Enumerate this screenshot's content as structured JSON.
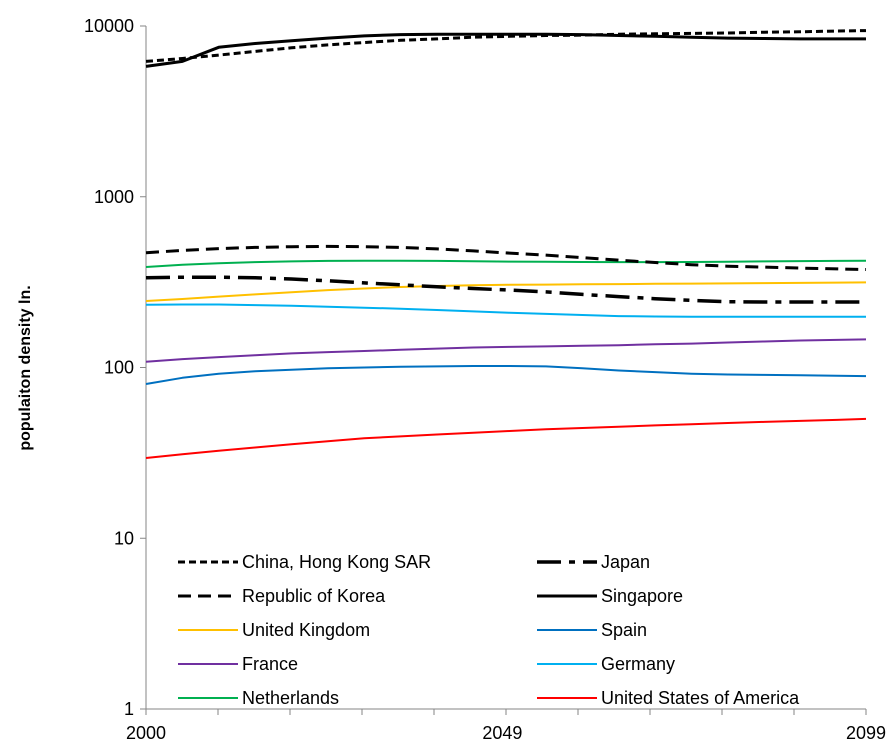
{
  "chart_data": {
    "type": "line",
    "title": "",
    "xlabel": "",
    "ylabel": "populaiton density ln.",
    "y_scale": "log",
    "ylim": [
      1,
      10000
    ],
    "xlim": [
      2000,
      2099
    ],
    "x_tick_labels": [
      "2000",
      "2049",
      "2099"
    ],
    "y_tick_labels": [
      "1",
      "10",
      "100",
      "1000",
      "10000"
    ],
    "grid": false,
    "legend_position": "bottom-inside",
    "x": [
      2000,
      2005,
      2010,
      2015,
      2020,
      2025,
      2030,
      2035,
      2040,
      2045,
      2050,
      2055,
      2060,
      2065,
      2070,
      2075,
      2080,
      2085,
      2090,
      2095,
      2099
    ],
    "series": [
      {
        "name": "China, Hong Kong SAR",
        "color": "#000000",
        "style": "short-dash",
        "values": [
          6200,
          6450,
          6750,
          7100,
          7450,
          7750,
          8000,
          8250,
          8400,
          8600,
          8700,
          8800,
          8850,
          8950,
          9000,
          9050,
          9100,
          9200,
          9250,
          9350,
          9400
        ]
      },
      {
        "name": "Japan",
        "color": "#000000",
        "style": "long-dash",
        "values": [
          335,
          338,
          338,
          335,
          330,
          322,
          313,
          305,
          297,
          290,
          284,
          277,
          268,
          260,
          253,
          247,
          243,
          242,
          242,
          242,
          242
        ]
      },
      {
        "name": "Republic of Korea",
        "color": "#000000",
        "style": "dash",
        "values": [
          470,
          485,
          497,
          505,
          510,
          512,
          510,
          505,
          495,
          482,
          468,
          455,
          440,
          425,
          412,
          400,
          392,
          387,
          382,
          378,
          375
        ]
      },
      {
        "name": "Singapore",
        "color": "#000000",
        "style": "solid-thick",
        "values": [
          5800,
          6200,
          7500,
          7900,
          8200,
          8500,
          8750,
          8900,
          8950,
          8950,
          8950,
          8950,
          8900,
          8800,
          8700,
          8600,
          8500,
          8450,
          8400,
          8400,
          8400
        ]
      },
      {
        "name": "United Kingdom",
        "color": "#FFC000",
        "style": "solid",
        "values": [
          245,
          252,
          260,
          268,
          276,
          284,
          290,
          296,
          300,
          303,
          305,
          306,
          307,
          308,
          309,
          310,
          311,
          312,
          313,
          314,
          315
        ]
      },
      {
        "name": "Spain",
        "color": "#0070C0",
        "style": "solid",
        "values": [
          80,
          87,
          92,
          95,
          97,
          99,
          100,
          101,
          101.5,
          102,
          102,
          101.5,
          99,
          96,
          94,
          92,
          91,
          90.5,
          90,
          89.5,
          89
        ]
      },
      {
        "name": "France",
        "color": "#7030A0",
        "style": "solid",
        "values": [
          108,
          112,
          115,
          118,
          121,
          123,
          125,
          127,
          129,
          131,
          132,
          133,
          134,
          135,
          137,
          138,
          140,
          142,
          144,
          145,
          146
        ]
      },
      {
        "name": "Germany",
        "color": "#00B0F0",
        "style": "solid",
        "values": [
          233,
          234,
          234,
          232,
          230,
          227,
          224,
          221,
          217,
          213,
          209,
          206,
          203,
          200,
          199,
          198,
          198,
          198,
          198,
          198,
          198
        ]
      },
      {
        "name": "Netherlands",
        "color": "#00B050",
        "style": "solid",
        "values": [
          388,
          400,
          408,
          414,
          418,
          421,
          422,
          422,
          421,
          419,
          417,
          416,
          415,
          414,
          414,
          415,
          416,
          418,
          420,
          421,
          422
        ]
      },
      {
        "name": "United States of America",
        "color": "#FF0000",
        "style": "solid",
        "values": [
          29.5,
          31,
          32.5,
          34,
          35.5,
          37,
          38.5,
          39.5,
          40.5,
          41.5,
          42.5,
          43.5,
          44.2,
          45,
          45.8,
          46.5,
          47.3,
          48,
          48.7,
          49.3,
          50
        ]
      }
    ]
  }
}
